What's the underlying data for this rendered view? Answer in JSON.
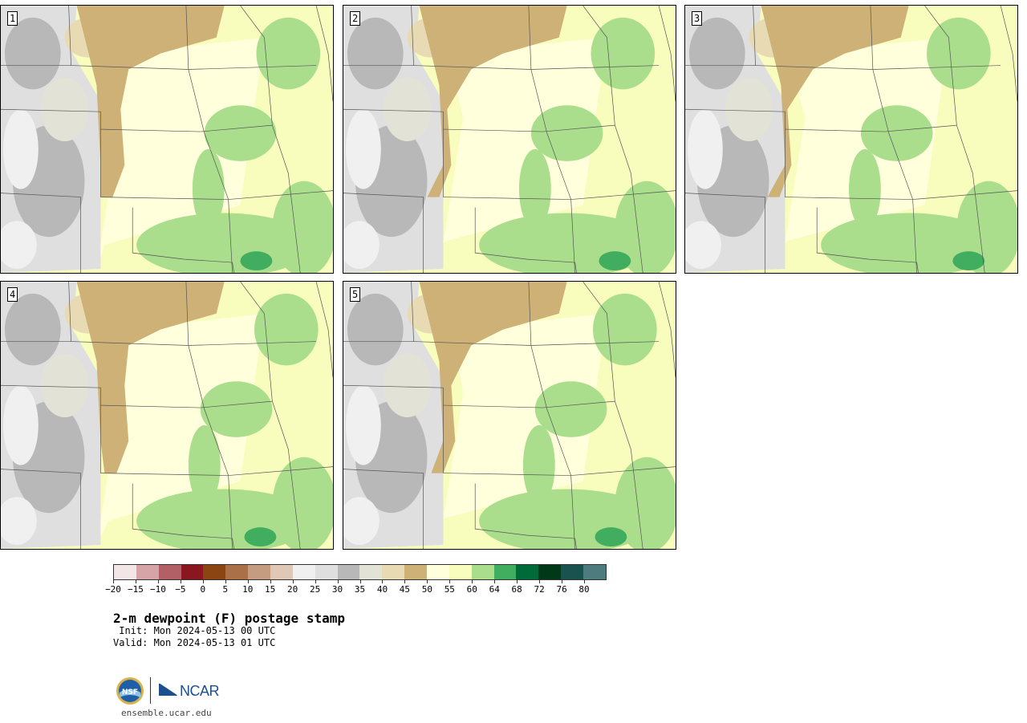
{
  "panels": [
    {
      "label": "1"
    },
    {
      "label": "2"
    },
    {
      "label": "3"
    },
    {
      "label": "4"
    },
    {
      "label": "5"
    }
  ],
  "colorbar": {
    "colors": [
      "#f3e6e6",
      "#d6a3a6",
      "#b35f66",
      "#8a1620",
      "#8b4513",
      "#aa7048",
      "#c69c80",
      "#e0c8b6",
      "#f0f0f0",
      "#dfdfdf",
      "#b8b8b8",
      "#e2e2d6",
      "#e8dbb3",
      "#cdb177",
      "#ffffdc",
      "#f8fcbc",
      "#aade8c",
      "#41ad5e",
      "#006a38",
      "#003818",
      "#1a5250",
      "#4e7b7e"
    ],
    "tick_labels": [
      "−20",
      "−15",
      "−10",
      "−5",
      "0",
      "5",
      "10",
      "15",
      "20",
      "25",
      "30",
      "35",
      "40",
      "45",
      "50",
      "55",
      "60",
      "64",
      "68",
      "72",
      "76",
      "80"
    ]
  },
  "title": "2-m dewpoint (F) postage stamp",
  "init_text": " Init: Mon 2024-05-13 00 UTC",
  "valid_text": "Valid: Mon 2024-05-13 01 UTC",
  "logos": {
    "nsf": "NSF",
    "ncar": "NCAR"
  },
  "url": "ensemble.ucar.edu"
}
